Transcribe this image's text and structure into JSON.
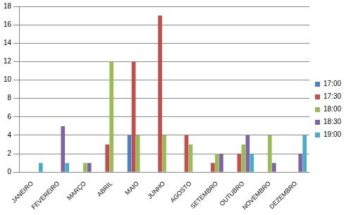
{
  "chart_data": {
    "type": "bar",
    "categories": [
      "JANEIRO",
      "FEVEREIRO",
      "MARÇO",
      "ABRIL",
      "MAIO",
      "JUNHO",
      "AGOSTO",
      "SETEMBRO",
      "OUTUBRO",
      "NOVEMBRO",
      "DEZEMBRO"
    ],
    "series": [
      {
        "name": "17:00",
        "color": "#4f81bd",
        "values": [
          0,
          0,
          0,
          0,
          4,
          0,
          0,
          0,
          0,
          0,
          0
        ]
      },
      {
        "name": "17:30",
        "color": "#c0504d",
        "values": [
          0,
          0,
          0,
          3,
          12,
          17,
          4,
          1,
          2,
          0,
          0
        ]
      },
      {
        "name": "18:00",
        "color": "#9bbb59",
        "values": [
          0,
          0,
          1,
          12,
          4,
          4,
          3,
          2,
          3,
          4,
          0
        ]
      },
      {
        "name": "18:30",
        "color": "#8064a2",
        "values": [
          0,
          5,
          1,
          0,
          0,
          0,
          0,
          2,
          4,
          1,
          2
        ]
      },
      {
        "name": "19:00",
        "color": "#4bacc6",
        "values": [
          1,
          1,
          0,
          0,
          0,
          0,
          0,
          0,
          2,
          0,
          4
        ]
      }
    ],
    "ylim": [
      0,
      18
    ],
    "yticks": [
      0,
      2,
      4,
      6,
      8,
      10,
      12,
      14,
      16,
      18
    ],
    "grid": true,
    "legend": "right"
  }
}
